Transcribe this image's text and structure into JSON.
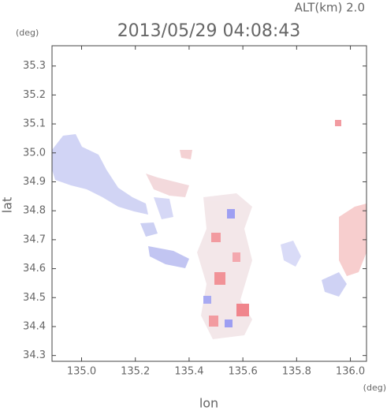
{
  "chart_data": {
    "type": "map",
    "title": "2013/05/29 04:08:43",
    "altitude_label": "ALT(km) 2.0",
    "y_unit": "(deg)",
    "x_unit": "(deg)",
    "xlabel": "lon",
    "ylabel": "lat",
    "xlim": [
      134.89,
      136.06
    ],
    "ylim": [
      34.28,
      35.37
    ],
    "xticks": [
      {
        "value": 135,
        "label": "135.0"
      },
      135.2,
      135.4,
      135.6,
      135.8,
      {
        "value": 136,
        "label": "136.0"
      }
    ],
    "yticks": [
      35.3,
      35.2,
      35.1,
      {
        "value": 35,
        "label": "35.0"
      },
      34.9,
      34.8,
      34.7,
      34.6,
      34.5,
      34.4,
      34.3
    ]
  }
}
